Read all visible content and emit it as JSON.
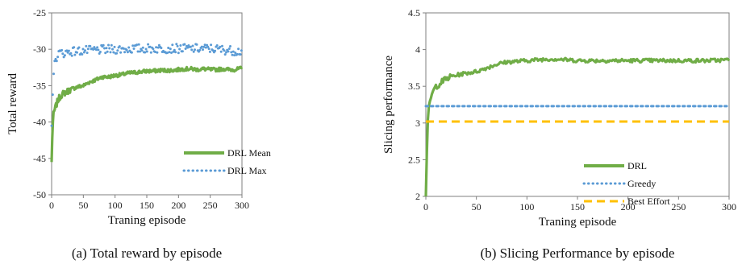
{
  "colors": {
    "green": "#70AD47",
    "blue": "#5B9BD5",
    "yellow": "#FFC000",
    "axis": "#7f7f7f"
  },
  "chart_data": [
    {
      "type": "line",
      "caption": "(a) Total reward by episode",
      "xlabel": "Traning episode",
      "ylabel": "Total reward",
      "xlim": [
        0,
        300
      ],
      "ylim": [
        -50,
        -25
      ],
      "xticks": [
        0,
        50,
        100,
        150,
        200,
        250,
        300
      ],
      "yticks": [
        -50,
        -45,
        -40,
        -35,
        -30,
        -25
      ],
      "grid": false,
      "legend_position": "bottom-right",
      "series": [
        {
          "name": "DRL Mean",
          "style": "solid",
          "points": [
            [
              0,
              -45.5
            ],
            [
              1,
              -42
            ],
            [
              2,
              -40
            ],
            [
              3,
              -39
            ],
            [
              5,
              -38.3
            ],
            [
              8,
              -37.5
            ],
            [
              10,
              -37
            ],
            [
              15,
              -36.3
            ],
            [
              20,
              -36
            ],
            [
              25,
              -35.8
            ],
            [
              30,
              -35.5
            ],
            [
              40,
              -35.2
            ],
            [
              50,
              -35
            ],
            [
              60,
              -34.5
            ],
            [
              70,
              -34.2
            ],
            [
              80,
              -33.8
            ],
            [
              90,
              -33.8
            ],
            [
              100,
              -33.6
            ],
            [
              110,
              -33.5
            ],
            [
              120,
              -33.3
            ],
            [
              130,
              -33.2
            ],
            [
              140,
              -33.1
            ],
            [
              150,
              -33
            ],
            [
              160,
              -33
            ],
            [
              170,
              -32.9
            ],
            [
              180,
              -32.9
            ],
            [
              190,
              -32.9
            ],
            [
              200,
              -32.8
            ],
            [
              210,
              -32.7
            ],
            [
              220,
              -32.7
            ],
            [
              230,
              -32.8
            ],
            [
              240,
              -32.7
            ],
            [
              250,
              -32.8
            ],
            [
              260,
              -32.8
            ],
            [
              270,
              -32.7
            ],
            [
              280,
              -32.8
            ],
            [
              290,
              -32.8
            ],
            [
              300,
              -32.6
            ]
          ]
        },
        {
          "name": "DRL Max",
          "style": "dotted",
          "points": [
            [
              0,
              -40
            ],
            [
              1,
              -37
            ],
            [
              2,
              -35
            ],
            [
              3,
              -33.5
            ],
            [
              5,
              -32
            ],
            [
              8,
              -31
            ],
            [
              10,
              -30.6
            ],
            [
              15,
              -30.5
            ],
            [
              20,
              -30.5
            ],
            [
              30,
              -30.3
            ],
            [
              50,
              -30.2
            ],
            [
              100,
              -30
            ],
            [
              150,
              -29.9
            ],
            [
              200,
              -29.9
            ],
            [
              250,
              -29.9
            ],
            [
              300,
              -30.3
            ]
          ]
        }
      ]
    },
    {
      "type": "line",
      "caption": "(b) Slicing Performance by episode",
      "xlabel": "Traning episode",
      "ylabel": "Slicing performance",
      "xlim": [
        0,
        300
      ],
      "ylim": [
        2,
        4.5
      ],
      "xticks": [
        0,
        50,
        100,
        150,
        200,
        250,
        300
      ],
      "yticks": [
        2,
        2.5,
        3,
        3.5,
        4,
        4.5
      ],
      "grid": false,
      "legend_position": "bottom-right",
      "series": [
        {
          "name": "DRL",
          "style": "solid",
          "points": [
            [
              0,
              2
            ],
            [
              1,
              2.6
            ],
            [
              2,
              3
            ],
            [
              3,
              3.2
            ],
            [
              5,
              3.35
            ],
            [
              8,
              3.45
            ],
            [
              10,
              3.5
            ],
            [
              15,
              3.55
            ],
            [
              20,
              3.6
            ],
            [
              25,
              3.63
            ],
            [
              30,
              3.65
            ],
            [
              40,
              3.68
            ],
            [
              50,
              3.7
            ],
            [
              60,
              3.75
            ],
            [
              70,
              3.8
            ],
            [
              80,
              3.83
            ],
            [
              90,
              3.84
            ],
            [
              100,
              3.85
            ],
            [
              110,
              3.86
            ],
            [
              120,
              3.87
            ],
            [
              130,
              3.87
            ],
            [
              140,
              3.86
            ],
            [
              150,
              3.85
            ],
            [
              160,
              3.85
            ],
            [
              170,
              3.85
            ],
            [
              180,
              3.85
            ],
            [
              190,
              3.85
            ],
            [
              200,
              3.85
            ],
            [
              220,
              3.85
            ],
            [
              240,
              3.85
            ],
            [
              260,
              3.85
            ],
            [
              280,
              3.85
            ],
            [
              300,
              3.86
            ]
          ]
        },
        {
          "name": "Greedy",
          "style": "dotted",
          "points": [
            [
              0,
              3.23
            ],
            [
              300,
              3.23
            ]
          ]
        },
        {
          "name": "Best Effort",
          "style": "dashed",
          "points": [
            [
              0,
              3.02
            ],
            [
              300,
              3.02
            ]
          ]
        }
      ]
    }
  ]
}
